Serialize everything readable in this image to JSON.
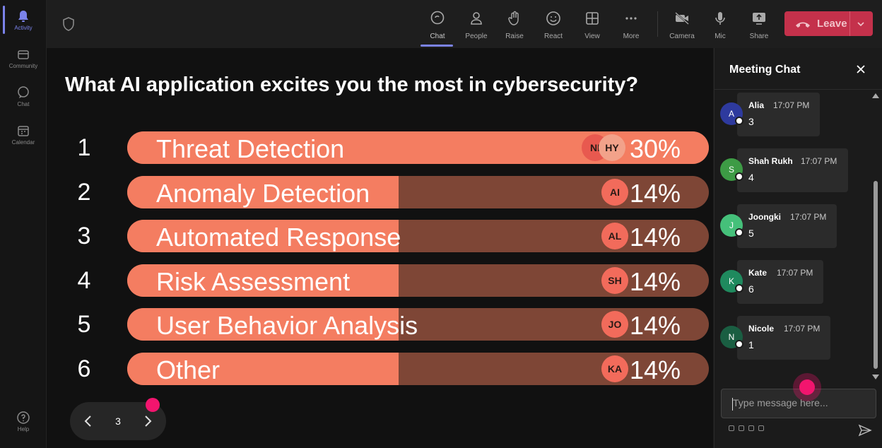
{
  "rail": {
    "items": [
      {
        "label": "Activity",
        "icon": "bell-icon",
        "active": true
      },
      {
        "label": "Community",
        "icon": "community-icon"
      },
      {
        "label": "Chat",
        "icon": "chat-icon"
      },
      {
        "label": "Calendar",
        "icon": "calendar-icon"
      }
    ],
    "help_label": "Help"
  },
  "toolbar": {
    "chat": "Chat",
    "people": "People",
    "raise": "Raise",
    "react": "React",
    "view": "View",
    "more": "More",
    "camera": "Camera",
    "mic": "Mic",
    "share": "Share",
    "leave": "Leave"
  },
  "poll": {
    "question": "What AI application excites you the most in cybersecurity?",
    "options": [
      {
        "num": "1",
        "label": "Threat Detection",
        "pct_text": "30%",
        "pct": 30,
        "avatars": [
          "NI",
          "HY"
        ]
      },
      {
        "num": "2",
        "label": "Anomaly Detection",
        "pct_text": "14%",
        "pct": 14,
        "avatars": [
          "AI"
        ]
      },
      {
        "num": "3",
        "label": "Automated Response",
        "pct_text": "14%",
        "pct": 14,
        "avatars": [
          "AL"
        ]
      },
      {
        "num": "4",
        "label": "Risk Assessment",
        "pct_text": "14%",
        "pct": 14,
        "avatars": [
          "SH"
        ]
      },
      {
        "num": "5",
        "label": "User Behavior Analysis",
        "pct_text": "14%",
        "pct": 14,
        "avatars": [
          "JO"
        ]
      },
      {
        "num": "6",
        "label": "Other",
        "pct_text": "14%",
        "pct": 14,
        "avatars": [
          "KA"
        ]
      }
    ],
    "page": "3"
  },
  "chat": {
    "title": "Meeting Chat",
    "messages": [
      {
        "initial": "A",
        "name": "Alia",
        "time": "17:07 PM",
        "text": "3",
        "color": "#2e3a9e"
      },
      {
        "initial": "S",
        "name": "Shah Rukh",
        "time": "17:07 PM",
        "text": "4",
        "color": "#3d9b45"
      },
      {
        "initial": "J",
        "name": "Joongki",
        "time": "17:07 PM",
        "text": "5",
        "color": "#45c07a"
      },
      {
        "initial": "K",
        "name": "Kate",
        "time": "17:07 PM",
        "text": "6",
        "color": "#1f8a5e"
      },
      {
        "initial": "N",
        "name": "Nicole",
        "time": "17:07 PM",
        "text": "1",
        "color": "#1a5e42"
      }
    ],
    "input_placeholder": "Type message here..."
  },
  "colors": {
    "bar_fill": "#f47d61",
    "bar_track": "#7e4636",
    "leave": "#c4314b",
    "accent": "#7b83eb",
    "pointer": "#f2156e"
  }
}
